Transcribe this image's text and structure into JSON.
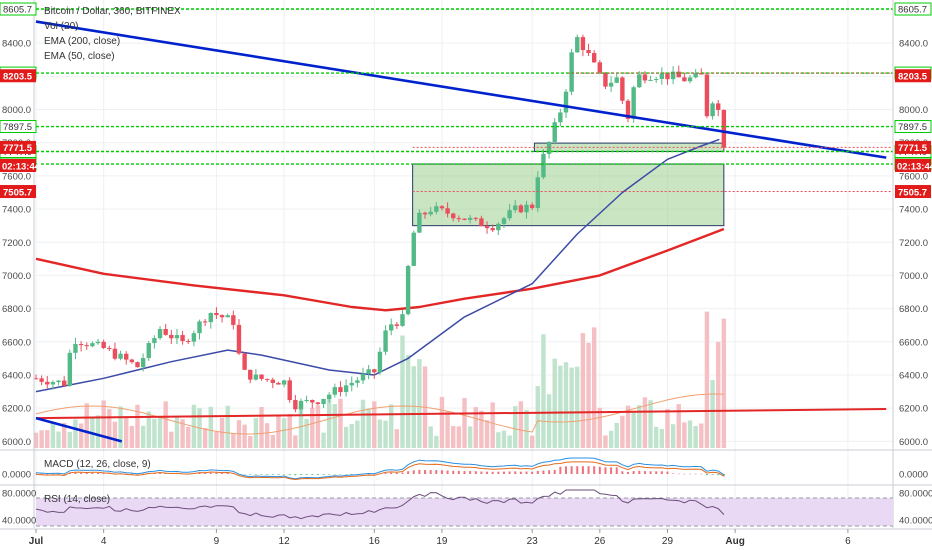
{
  "chart_data": {
    "type": "candlestick",
    "title": "Bitcoin / Dollar, 360, BITFINEX",
    "indicators": [
      "Vol (20)",
      "EMA (200, close)",
      "EMA (50, close)"
    ],
    "macd_label": "MACD (12, 26, close, 9)",
    "rsi_label": "RSI (14, close)",
    "y_ticks": [
      8600,
      8400,
      8200,
      8000,
      7800,
      7600,
      7400,
      7200,
      7000,
      6800,
      6600,
      6400,
      6200,
      6000
    ],
    "ylim": [
      5960,
      8660
    ],
    "x_ticks": [
      {
        "label": "Jul",
        "day": 1
      },
      {
        "label": "4",
        "day": 4
      },
      {
        "label": "9",
        "day": 9
      },
      {
        "label": "12",
        "day": 12
      },
      {
        "label": "16",
        "day": 16
      },
      {
        "label": "19",
        "day": 19
      },
      {
        "label": "23",
        "day": 23
      },
      {
        "label": "26",
        "day": 26
      },
      {
        "label": "29",
        "day": 29
      },
      {
        "label": "Aug",
        "day": 32
      },
      {
        "label": "6",
        "day": 37
      }
    ],
    "xlim": [
      1,
      39
    ],
    "last_day": 31.5,
    "ohlc_keypoints": [
      [
        1,
        6380
      ],
      [
        2.3,
        6350
      ],
      [
        2.6,
        6620
      ],
      [
        4,
        6560
      ],
      [
        5.5,
        6450
      ],
      [
        6.5,
        6680
      ],
      [
        7.5,
        6590
      ],
      [
        8.7,
        6780
      ],
      [
        9.8,
        6720
      ],
      [
        10.1,
        6420
      ],
      [
        10.8,
        6380
      ],
      [
        12,
        6360
      ],
      [
        12.4,
        6220
      ],
      [
        13.5,
        6250
      ],
      [
        14.5,
        6320
      ],
      [
        15.5,
        6390
      ],
      [
        16,
        6420
      ],
      [
        16.6,
        6700
      ],
      [
        17.3,
        6740
      ],
      [
        17.6,
        7200
      ],
      [
        18,
        7350
      ],
      [
        18.5,
        7400
      ],
      [
        19.5,
        7370
      ],
      [
        20.5,
        7320
      ],
      [
        21.3,
        7300
      ],
      [
        22.3,
        7400
      ],
      [
        23,
        7420
      ],
      [
        23.3,
        7650
      ],
      [
        23.7,
        7780
      ],
      [
        24.4,
        8050
      ],
      [
        24.9,
        8450
      ],
      [
        25.4,
        8350
      ],
      [
        26.2,
        8150
      ],
      [
        26.8,
        8190
      ],
      [
        27.2,
        7920
      ],
      [
        27.6,
        8200
      ],
      [
        28.4,
        8210
      ],
      [
        29.2,
        8200
      ],
      [
        29.8,
        8180
      ],
      [
        30.5,
        8200
      ],
      [
        30.8,
        7930
      ],
      [
        31.1,
        8130
      ],
      [
        31.5,
        7771.5
      ]
    ],
    "ema200": [
      [
        1,
        7100
      ],
      [
        4,
        7010
      ],
      [
        8,
        6940
      ],
      [
        12,
        6880
      ],
      [
        15,
        6810
      ],
      [
        16.5,
        6790
      ],
      [
        18,
        6810
      ],
      [
        20,
        6860
      ],
      [
        23,
        6920
      ],
      [
        26,
        7000
      ],
      [
        29,
        7150
      ],
      [
        31.5,
        7280
      ]
    ],
    "ema50": [
      [
        1,
        6300
      ],
      [
        4,
        6380
      ],
      [
        7,
        6480
      ],
      [
        9.5,
        6550
      ],
      [
        11,
        6520
      ],
      [
        14,
        6430
      ],
      [
        16,
        6400
      ],
      [
        17.5,
        6500
      ],
      [
        20,
        6750
      ],
      [
        23,
        6950
      ],
      [
        25,
        7250
      ],
      [
        27,
        7500
      ],
      [
        29,
        7700
      ],
      [
        30.5,
        7780
      ],
      [
        31.3,
        7820
      ]
    ],
    "trendline_upper": [
      [
        1,
        8530
      ],
      [
        38.7,
        7710
      ]
    ],
    "trendline_lower": [
      [
        1,
        6140
      ],
      [
        4.8,
        6000
      ]
    ],
    "support_line": [
      [
        1,
        6140
      ],
      [
        38.7,
        6195
      ]
    ],
    "boxes": [
      {
        "from_day": 17.7,
        "to_day": 31.5,
        "from": 7300,
        "to": 7671.5
      },
      {
        "from_day": 23.1,
        "to_day": 31.5,
        "from": 7747,
        "to": 7797.5
      }
    ],
    "horizontal_levels": [
      {
        "price": 8605.7,
        "label": "8605.7",
        "color": "#00cc00"
      },
      {
        "price": 8219.4,
        "label": "8219.4",
        "color": "#00cc00"
      },
      {
        "price": 7897.5,
        "label": "7897.5",
        "color": "#00cc00"
      },
      {
        "price": 7747.0,
        "label": "7747.0",
        "color": "#00cc00"
      },
      {
        "price": 7671.5,
        "label": "7671.5",
        "color": "#00cc00"
      }
    ],
    "red_levels": [
      {
        "price": 8203.5,
        "label": "8203.5"
      },
      {
        "price": 7771.5,
        "label": "7771.5"
      },
      {
        "price": 7505.7,
        "label": "7505.7"
      }
    ],
    "countdown": "02:13:44",
    "macd_ticks": [
      "0.0000"
    ],
    "rsi_ticks": [
      "80.0000",
      "40.0000"
    ],
    "colors": {
      "up": "#53b987",
      "down": "#eb4d5c",
      "trendline": "#0022cc",
      "ema200": "#e32626",
      "ema50": "#3b4ba8",
      "level": "#00cc00",
      "box_fill": "#9fcf8e",
      "rsi_band": "#ead9f5"
    }
  }
}
